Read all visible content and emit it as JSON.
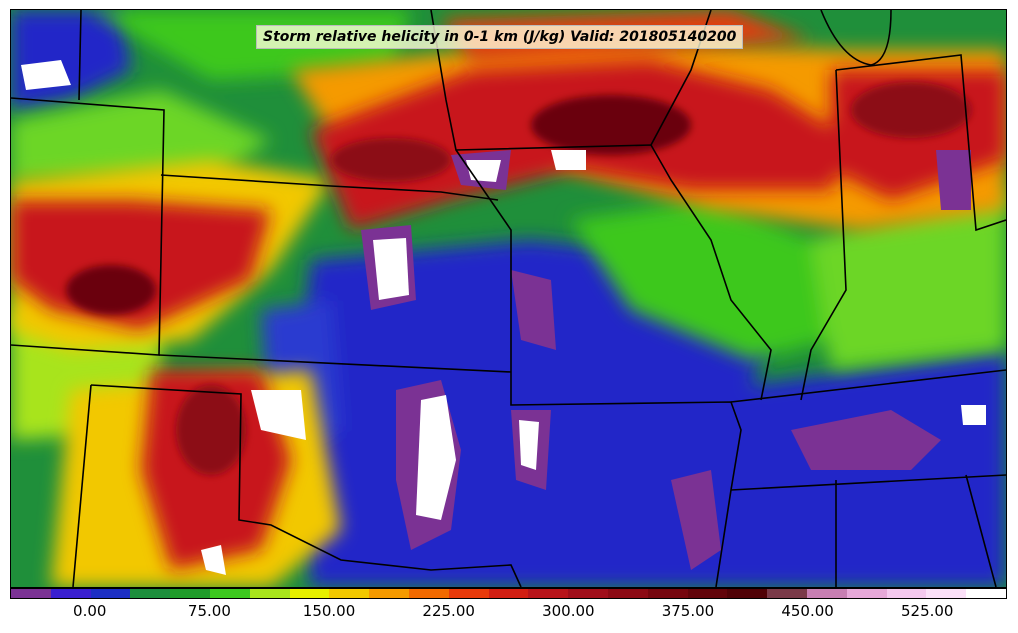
{
  "map": {
    "title": "Storm relative helicity in 0-1 km (J/kg) Valid: 201805140200",
    "field": "storm-relative-helicity-0-1km",
    "region": "Central United States"
  },
  "colorbar": {
    "colors": [
      "#7b3294",
      "#3a1fd0",
      "#1c2fc4",
      "#1c8f3c",
      "#1f9c2a",
      "#3cc81e",
      "#a8e41c",
      "#e6f000",
      "#f2c800",
      "#f59a00",
      "#f26a00",
      "#e83a0a",
      "#d21e12",
      "#b8141a",
      "#a00e1a",
      "#8c0a14",
      "#76060e",
      "#62040a",
      "#500206",
      "#7a3a48",
      "#c77fb2",
      "#e6a8d8",
      "#f4c8ee",
      "#fbe0f8",
      "#ffffff"
    ],
    "tick_labels": [
      "0.00",
      "75.00",
      "150.00",
      "225.00",
      "300.00",
      "375.00",
      "450.00",
      "525.00"
    ]
  }
}
